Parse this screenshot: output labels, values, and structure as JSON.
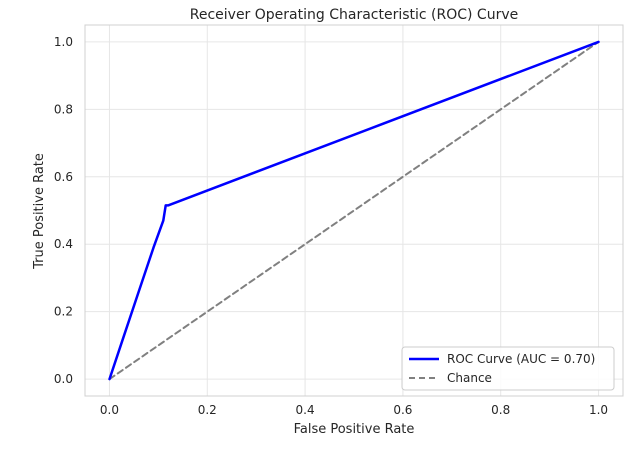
{
  "chart_data": {
    "type": "line",
    "title": "Receiver Operating Characteristic (ROC) Curve",
    "xlabel": "False Positive Rate",
    "ylabel": "True Positive Rate",
    "xlim": [
      -0.05,
      1.05
    ],
    "ylim": [
      -0.05,
      1.05
    ],
    "x_ticks": [
      0.0,
      0.2,
      0.4,
      0.6,
      0.8,
      1.0
    ],
    "y_ticks": [
      0.0,
      0.2,
      0.4,
      0.6,
      0.8,
      1.0
    ],
    "x_tick_labels": [
      "0.0",
      "0.2",
      "0.4",
      "0.6",
      "0.8",
      "1.0"
    ],
    "y_tick_labels": [
      "0.0",
      "0.2",
      "0.4",
      "0.6",
      "0.8",
      "1.0"
    ],
    "grid": true,
    "legend_placement": "bottom-right",
    "series": [
      {
        "name": "ROC Curve (AUC = 0.70)",
        "color": "#0000ff",
        "style": "solid",
        "x": [
          0.0,
          0.03,
          0.06,
          0.09,
          0.11,
          0.115,
          0.12,
          1.0
        ],
        "y": [
          0.0,
          0.13,
          0.26,
          0.39,
          0.47,
          0.515,
          0.515,
          1.0
        ]
      },
      {
        "name": "Chance",
        "color": "#808080",
        "style": "dashed",
        "x": [
          0.0,
          1.0
        ],
        "y": [
          0.0,
          1.0
        ]
      }
    ]
  }
}
